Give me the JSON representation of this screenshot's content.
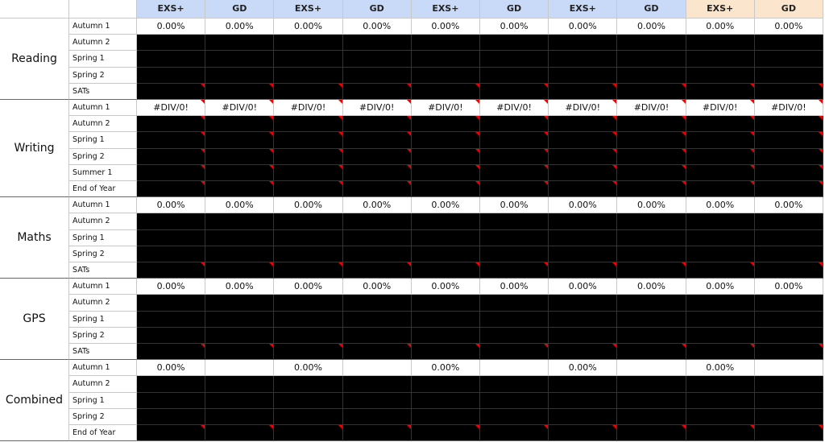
{
  "header": {
    "columns": [
      "EXS+",
      "GD",
      "EXS+",
      "GD",
      "EXS+",
      "GD",
      "EXS+",
      "GD",
      "EXS+",
      "GD"
    ]
  },
  "sections": [
    {
      "name": "Reading",
      "rows": [
        {
          "label": "Autumn 1",
          "cells": [
            "0.00%",
            "0.00%",
            "0.00%",
            "0.00%",
            "0.00%",
            "0.00%",
            "0.00%",
            "0.00%",
            "0.00%",
            "0.00%"
          ]
        },
        {
          "label": "Autumn 2"
        },
        {
          "label": "Spring 1"
        },
        {
          "label": "Spring 2"
        },
        {
          "label": "SATs"
        }
      ]
    },
    {
      "name": "Writing",
      "rows": [
        {
          "label": "Autumn 1",
          "cells": [
            "#DIV/0!",
            "#DIV/0!",
            "#DIV/0!",
            "#DIV/0!",
            "#DIV/0!",
            "#DIV/0!",
            "#DIV/0!",
            "#DIV/0!",
            "#DIV/0!",
            "#DIV/0!"
          ]
        },
        {
          "label": "Autumn 2"
        },
        {
          "label": "Spring 1"
        },
        {
          "label": "Spring 2"
        },
        {
          "label": "Summer 1"
        },
        {
          "label": "End of Year"
        }
      ]
    },
    {
      "name": "Maths",
      "rows": [
        {
          "label": "Autumn 1",
          "cells": [
            "0.00%",
            "0.00%",
            "0.00%",
            "0.00%",
            "0.00%",
            "0.00%",
            "0.00%",
            "0.00%",
            "0.00%",
            "0.00%"
          ]
        },
        {
          "label": "Autumn 2"
        },
        {
          "label": "Spring 1"
        },
        {
          "label": "Spring 2"
        },
        {
          "label": "SATs"
        }
      ]
    },
    {
      "name": "GPS",
      "rows": [
        {
          "label": "Autumn 1",
          "cells": [
            "0.00%",
            "0.00%",
            "0.00%",
            "0.00%",
            "0.00%",
            "0.00%",
            "0.00%",
            "0.00%",
            "0.00%",
            "0.00%"
          ]
        },
        {
          "label": "Autumn 2"
        },
        {
          "label": "Spring 1"
        },
        {
          "label": "Spring 2"
        },
        {
          "label": "SATs"
        }
      ]
    },
    {
      "name": "Combined",
      "rows": [
        {
          "label": "Autumn 1",
          "cells": [
            "0.00%",
            null,
            "0.00%",
            null,
            "0.00%",
            null,
            "0.00%",
            null,
            "0.00%",
            null
          ]
        },
        {
          "label": "Autumn 2"
        },
        {
          "label": "Spring 1"
        },
        {
          "label": "Spring 2"
        },
        {
          "label": "End of Year"
        }
      ]
    }
  ]
}
